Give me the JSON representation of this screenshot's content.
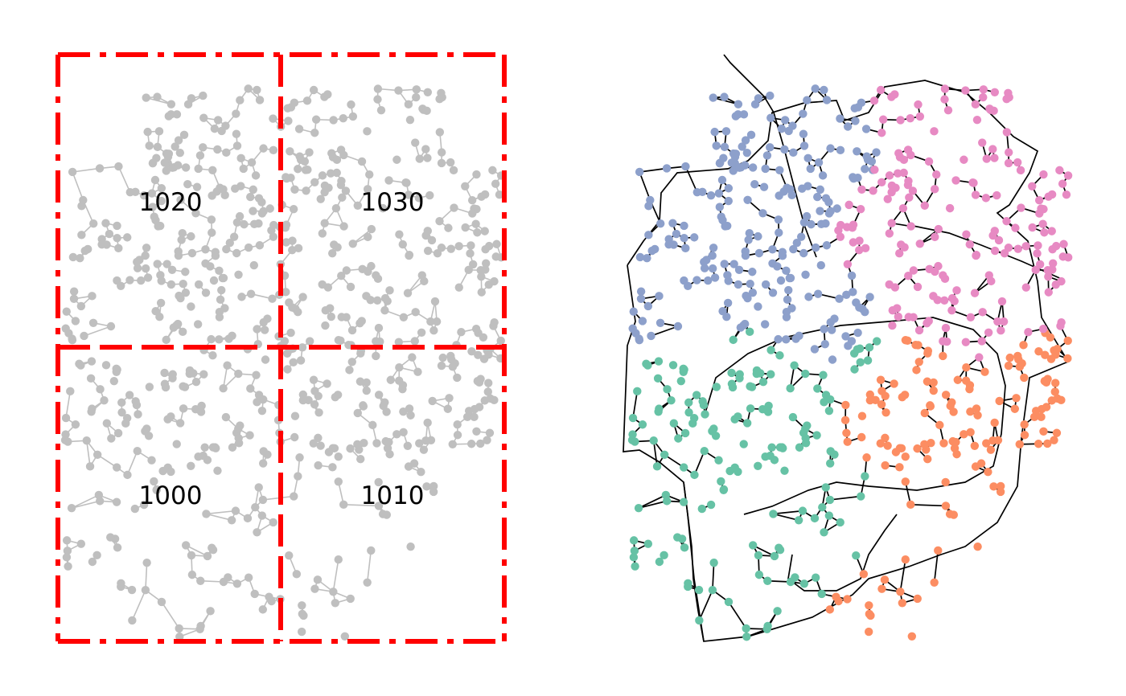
{
  "zone_labels": [
    "1000",
    "1010",
    "1020",
    "1030"
  ],
  "colors": {
    "background": "#ffffff",
    "grid": "#ff0000",
    "left_network": "#bfbfbf",
    "right_edges": "#000000",
    "community_sw": "#66c2a5",
    "community_se": "#fc8d62",
    "community_nw": "#8da0cb",
    "community_ne": "#e78ac3"
  }
}
